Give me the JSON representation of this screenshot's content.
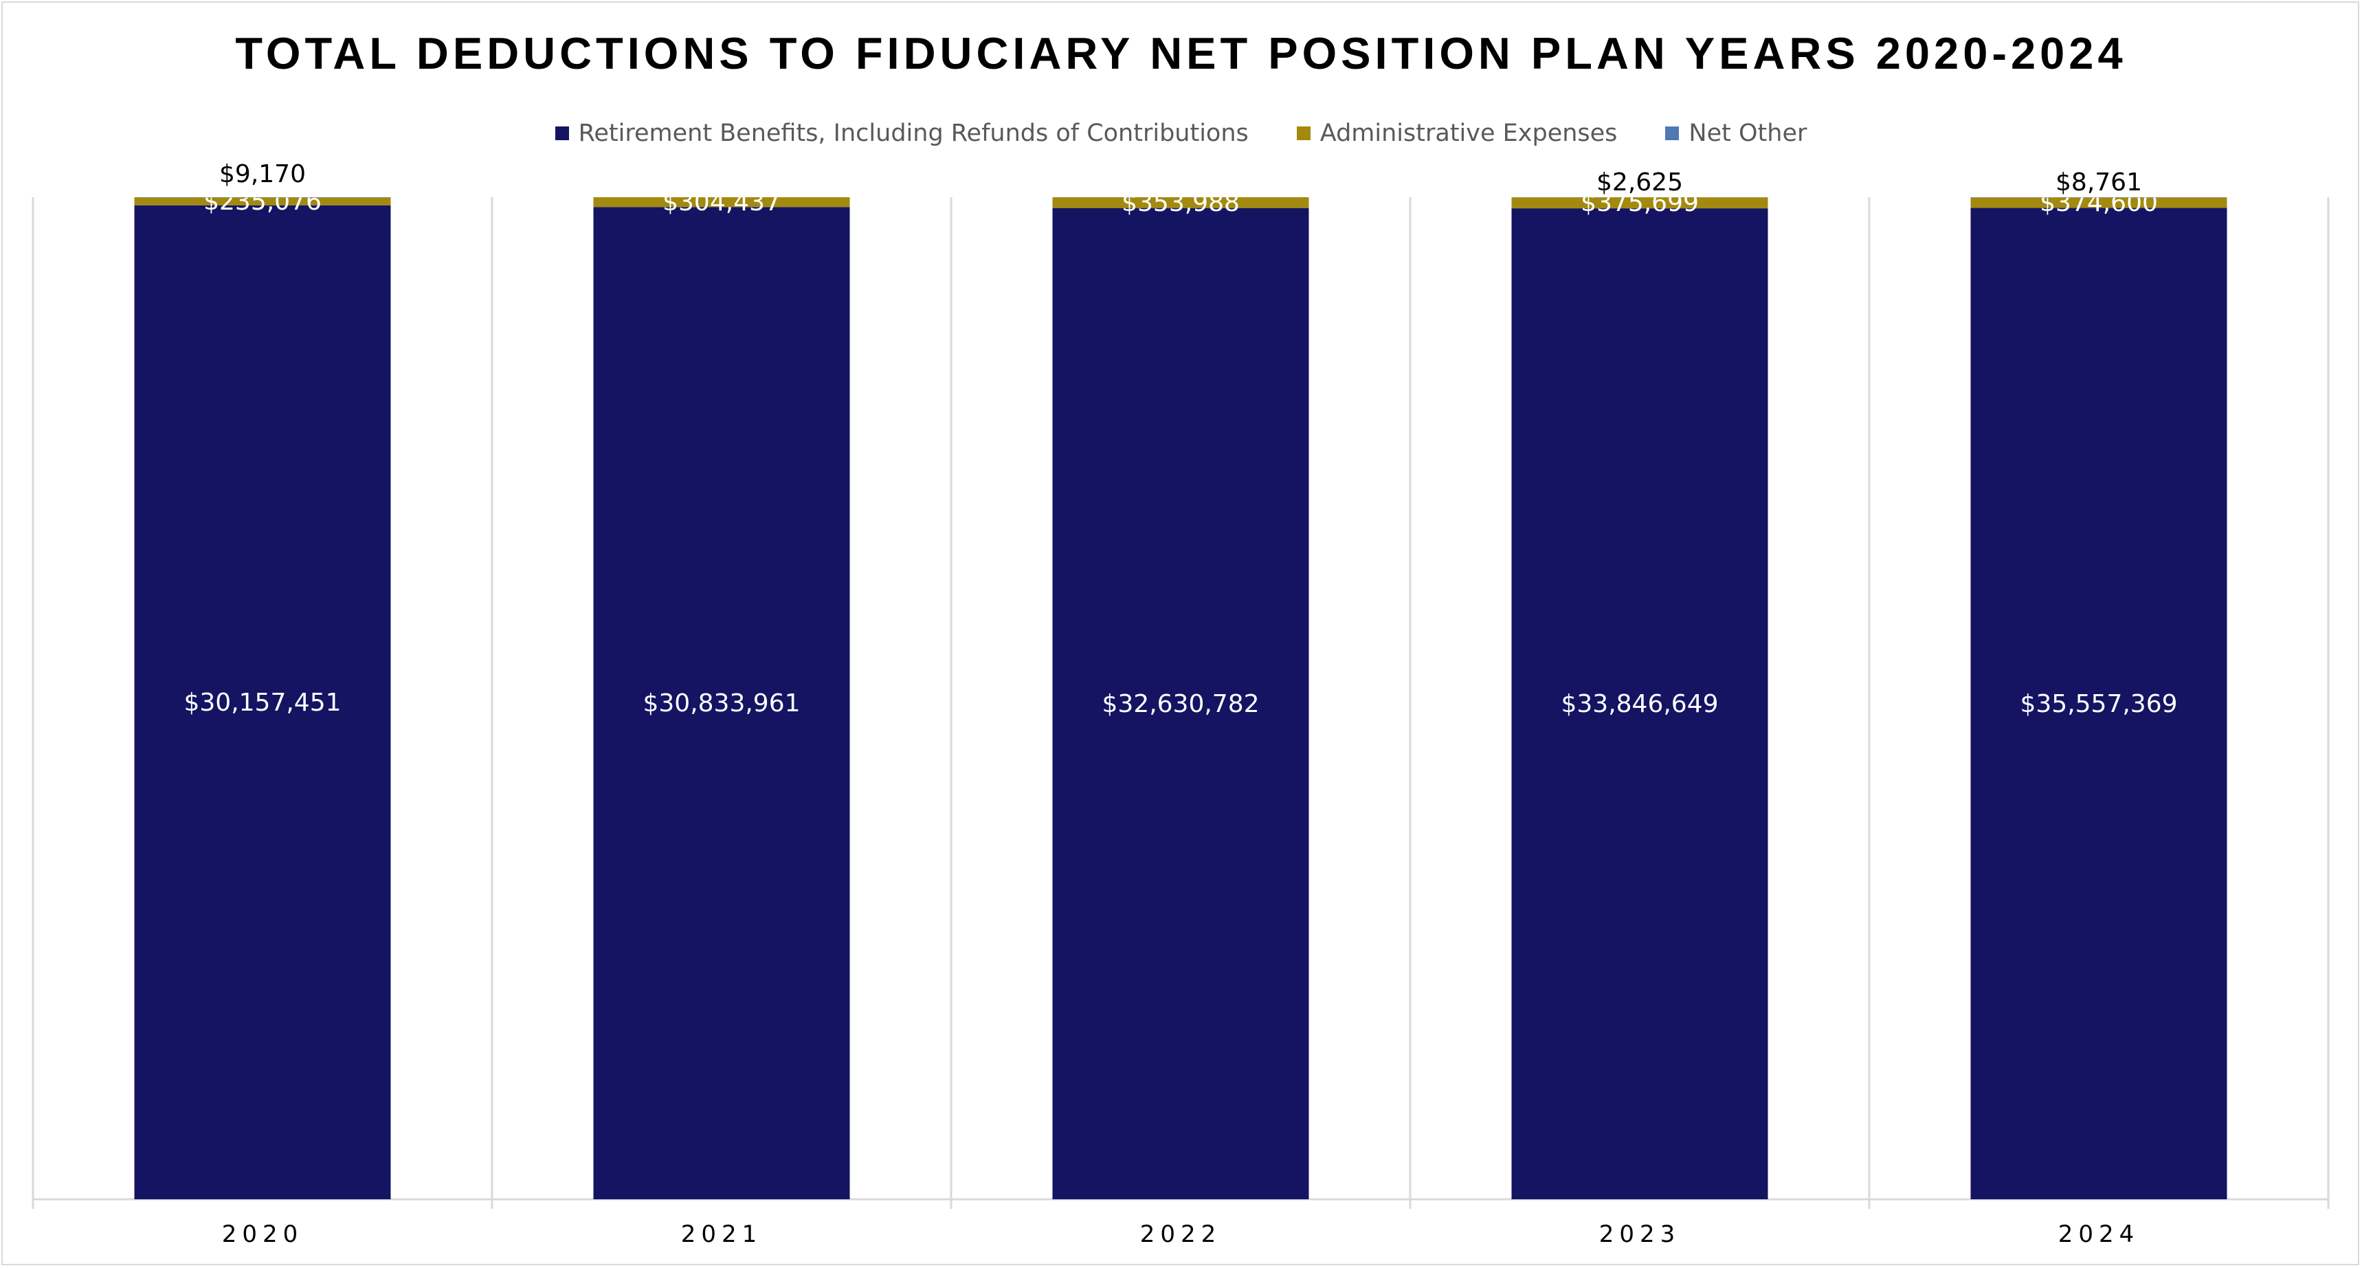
{
  "chart_data": {
    "type": "bar",
    "stacked": true,
    "title": "TOTAL DEDUCTIONS TO FIDUCIARY NET POSITION PLAN YEARS 2020-2024",
    "categories": [
      "2020",
      "2021",
      "2022",
      "2023",
      "2024"
    ],
    "series": [
      {
        "name": "Retirement Benefits, Including Refunds of Contributions",
        "color": "#141463",
        "values": [
          30157451,
          30833961,
          32630782,
          33846649,
          35557369
        ],
        "labels": [
          "$30,157,451",
          "$30,833,961",
          "$32,630,782",
          "$33,846,649",
          "$35,557,369"
        ]
      },
      {
        "name": "Administrative Expenses",
        "color": "#a38a0f",
        "values": [
          235076,
          304437,
          353988,
          375699,
          374600
        ],
        "labels": [
          "$235,076",
          "$304,437",
          "$353,988",
          "$375,699",
          "$374,600"
        ]
      },
      {
        "name": "Net Other",
        "color": "#4e79b5",
        "values": [
          9170,
          0,
          0,
          2625,
          8761
        ],
        "labels": [
          "$9,170",
          "",
          "",
          "$2,625",
          "$8,761"
        ]
      }
    ],
    "legend_position": "top",
    "grid": false,
    "normalized": true
  }
}
